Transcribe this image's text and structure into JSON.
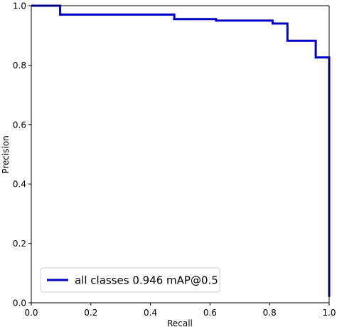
{
  "chart_data": {
    "type": "line",
    "title": "",
    "xlabel": "Recall",
    "ylabel": "Precision",
    "xlim": [
      0,
      1
    ],
    "ylim": [
      0,
      1
    ],
    "x_ticks": [
      0.0,
      0.2,
      0.4,
      0.6,
      0.8,
      1.0
    ],
    "y_ticks": [
      0.0,
      0.2,
      0.4,
      0.6,
      0.8,
      1.0
    ],
    "x_tick_labels": [
      "0.0",
      "0.2",
      "0.4",
      "0.6",
      "0.8",
      "1.0"
    ],
    "y_tick_labels": [
      "0.0",
      "0.2",
      "0.4",
      "0.6",
      "0.8",
      "1.0"
    ],
    "grid": false,
    "legend_position": "lower-left",
    "series": [
      {
        "name": "all classes 0.946 mAP@0.5",
        "color": "#0000cc",
        "points": [
          [
            0.0,
            1.0
          ],
          [
            0.097,
            1.0
          ],
          [
            0.097,
            0.97
          ],
          [
            0.48,
            0.97
          ],
          [
            0.48,
            0.955
          ],
          [
            0.62,
            0.955
          ],
          [
            0.62,
            0.95
          ],
          [
            0.81,
            0.95
          ],
          [
            0.81,
            0.94
          ],
          [
            0.86,
            0.94
          ],
          [
            0.86,
            0.882
          ],
          [
            0.955,
            0.882
          ],
          [
            0.955,
            0.826
          ],
          [
            1.0,
            0.826
          ],
          [
            1.0,
            0.02
          ]
        ]
      }
    ]
  }
}
